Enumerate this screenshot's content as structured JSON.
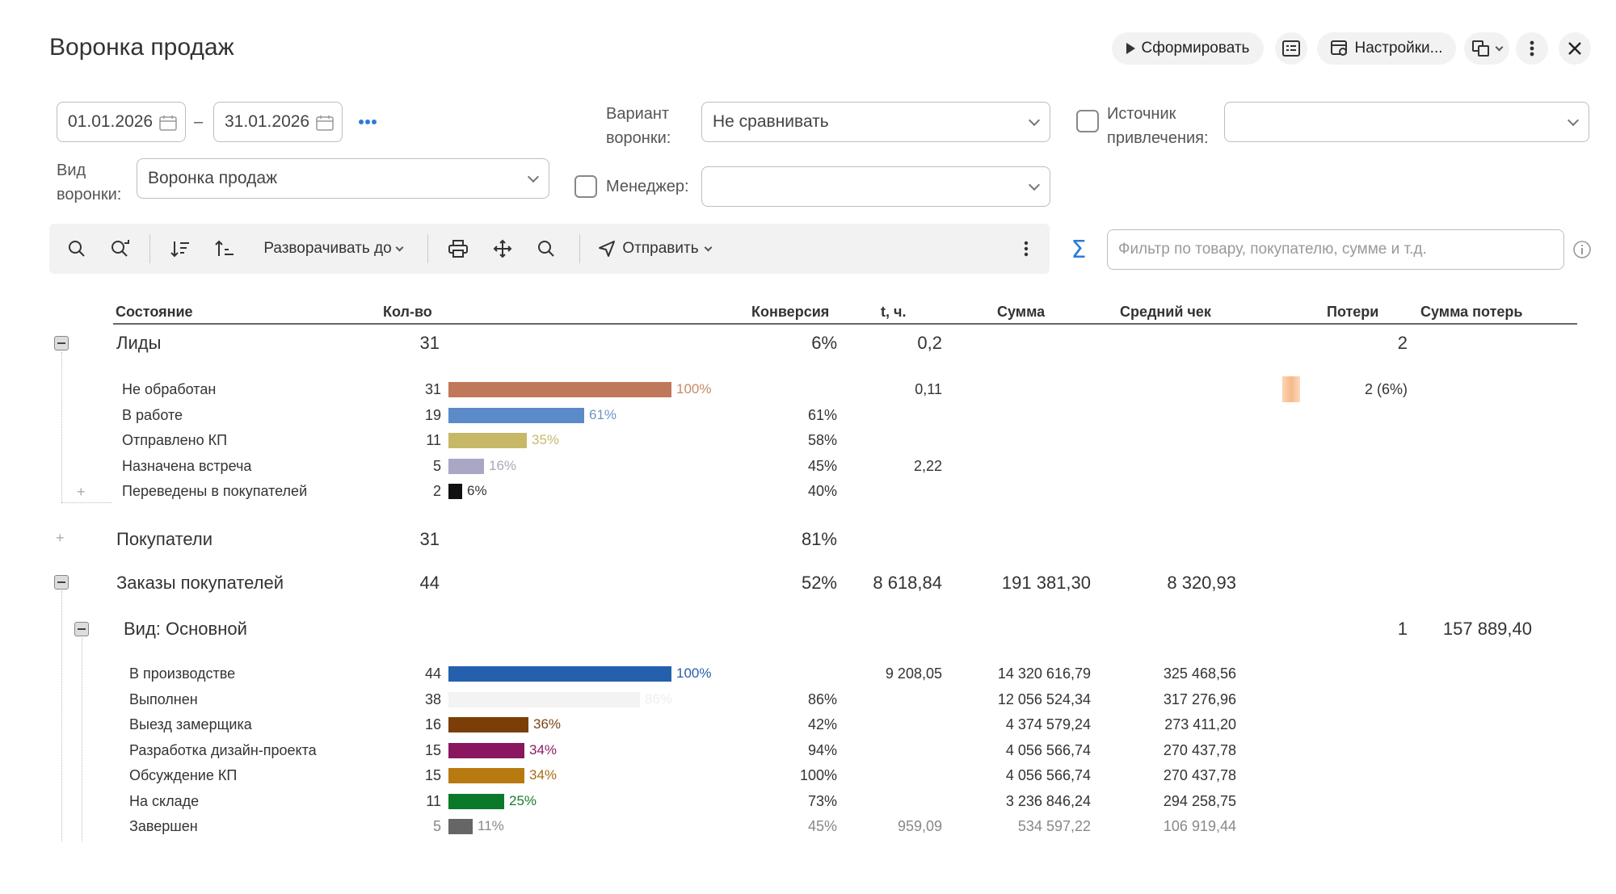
{
  "page": {
    "title": "Воронка продаж"
  },
  "actions": {
    "run_label": "Сформировать",
    "settings_label": "Настройки..."
  },
  "filters": {
    "date_from": "01.01.2026",
    "date_to": "31.01.2026",
    "date_sep": "–",
    "variant_label": "Вариант воронки:",
    "variant_value": "Не сравнивать",
    "source_label": "Источник привлечения:",
    "source_value": "",
    "type_label": "Вид воронки:",
    "type_value": "Воронка продаж",
    "manager_label": "Менеджер:",
    "manager_value": ""
  },
  "toolbar": {
    "expand_label": "Разворачивать до",
    "send_label": "Отправить",
    "filter_placeholder": "Фильтр по товару, покупателю, сумме и т.д."
  },
  "columns": [
    "Состояние",
    "Кол-во",
    "Конверсия",
    "t, ч.",
    "Сумма",
    "Средний чек",
    "Потери",
    "Сумма потерь"
  ],
  "groups": {
    "leads": {
      "name": "Лиды",
      "count": "31",
      "conv": "6%",
      "t": "0,2",
      "loss": "2"
    },
    "buyers": {
      "name": "Покупатели",
      "count": "31",
      "conv": "81%"
    },
    "orders": {
      "name": "Заказы покупателей",
      "count": "44",
      "conv": "52%",
      "t": "8 618,84",
      "sum": "191 381,30",
      "avg": "8 320,93"
    },
    "orders_sub": {
      "name": "Вид: Основной",
      "loss": "1",
      "loss_sum": "157 889,40"
    }
  },
  "lead_rows": [
    {
      "name": "Не обработан",
      "count": "31",
      "fraction": 1.0,
      "pct": "100%",
      "conv": "",
      "t": "0,11",
      "loss": "2 (6%)",
      "color": "#c0785a",
      "pct_color": "#c88a66"
    },
    {
      "name": "В работе",
      "count": "19",
      "fraction": 0.61,
      "pct": "61%",
      "conv": "61%",
      "t": "",
      "loss": "",
      "color": "#5b8ac9",
      "pct_color": "#6b94c6"
    },
    {
      "name": "Отправлено КП",
      "count": "11",
      "fraction": 0.35,
      "pct": "35%",
      "conv": "58%",
      "t": "",
      "loss": "",
      "color": "#c6b866",
      "pct_color": "#c9b86f"
    },
    {
      "name": "Назначена встреча",
      "count": "5",
      "fraction": 0.16,
      "pct": "16%",
      "conv": "45%",
      "t": "2,22",
      "loss": "",
      "color": "#a9a6c6",
      "pct_color": "#a9a9b9"
    },
    {
      "name": "Переведены в покупателей",
      "count": "2",
      "fraction": 0.06,
      "pct": "6%",
      "conv": "40%",
      "t": "",
      "loss": "",
      "color": "#111111",
      "pct_color": "#333333"
    }
  ],
  "order_rows": [
    {
      "name": "В производстве",
      "count": "44",
      "fraction": 1.0,
      "pct": "100%",
      "conv": "",
      "t": "9 208,05",
      "sum": "14 320 616,79",
      "avg": "325 468,56",
      "color": "#2460ad",
      "pct_color": "#2a5fa8"
    },
    {
      "name": "Выполнен",
      "count": "38",
      "fraction": 0.86,
      "pct": "86%",
      "conv": "86%",
      "t": "",
      "sum": "12 056 524,34",
      "avg": "317 276,96",
      "color": "#f3f3f3",
      "pct_color": "#eeeeee"
    },
    {
      "name": "Выезд замерщика",
      "count": "16",
      "fraction": 0.36,
      "pct": "36%",
      "conv": "42%",
      "t": "",
      "sum": "4 374 579,24",
      "avg": "273 411,20",
      "color": "#7a3e06",
      "pct_color": "#7a4414"
    },
    {
      "name": "Разработка дизайн-проекта",
      "count": "15",
      "fraction": 0.34,
      "pct": "34%",
      "conv": "94%",
      "t": "",
      "sum": "4 056 566,74",
      "avg": "270 437,78",
      "color": "#8a1660",
      "pct_color": "#8a1c62"
    },
    {
      "name": "Обсуждение КП",
      "count": "15",
      "fraction": 0.34,
      "pct": "34%",
      "conv": "100%",
      "t": "",
      "sum": "4 056 566,74",
      "avg": "270 437,78",
      "color": "#b87a10",
      "pct_color": "#a86a14"
    },
    {
      "name": "На складе",
      "count": "11",
      "fraction": 0.25,
      "pct": "25%",
      "conv": "73%",
      "t": "",
      "sum": "3 236 846,24",
      "avg": "294 258,75",
      "color": "#0a7a2a",
      "pct_color": "#1a7a2e"
    },
    {
      "name": "Завершен",
      "count": "5",
      "fraction": 0.11,
      "pct": "11%",
      "conv": "45%",
      "t": "959,09",
      "sum": "534 597,22",
      "avg": "106 919,44",
      "color": "#666666",
      "pct_color": "#888888"
    }
  ]
}
